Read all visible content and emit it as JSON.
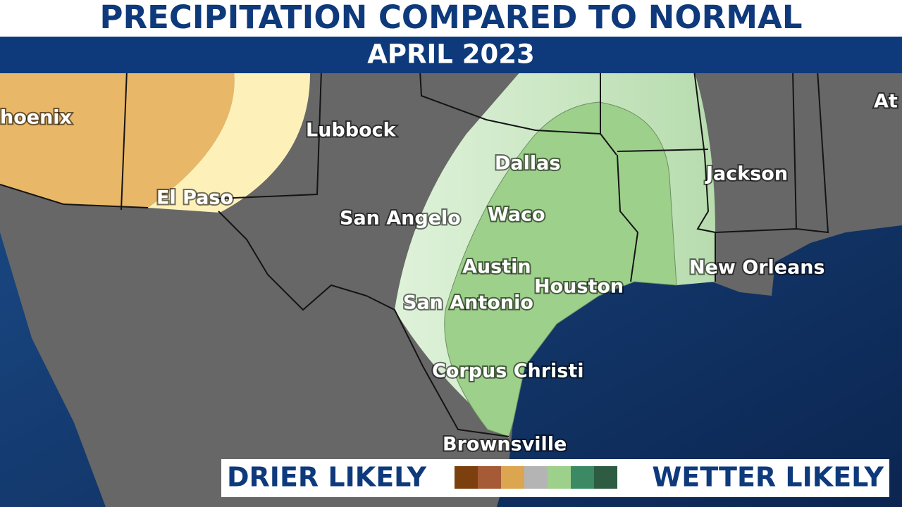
{
  "header": {
    "title": "PRECIPITATION COMPARED TO NORMAL",
    "subtitle": "APRIL 2023"
  },
  "cities": [
    "hoenix",
    "Lubbock",
    "El Paso",
    "Dallas",
    "San Angelo",
    "Waco",
    "Austin",
    "Houston",
    "San Antonio",
    "Corpus Christi",
    "Brownsville",
    "Jackson",
    "New Orleans",
    "At"
  ],
  "legend": {
    "left": "DRIER LIKELY",
    "right": "WETTER LIKELY",
    "colors": [
      "#7b400d",
      "#a65a36",
      "#dca550",
      "#b4b4b4",
      "#9dd08b",
      "#3b8a64",
      "#2d5c43"
    ]
  }
}
